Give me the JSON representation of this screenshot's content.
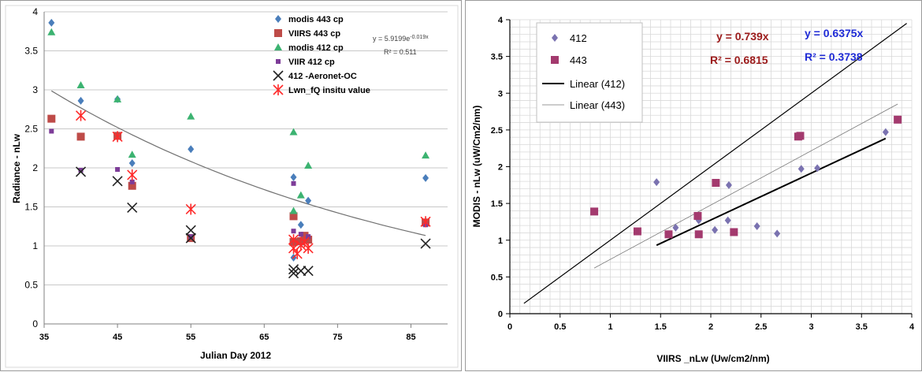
{
  "chart_data": [
    {
      "type": "scatter",
      "xlabel": "Julian Day 2012",
      "ylabel": "Radiance - nLw",
      "xlim": [
        35,
        90
      ],
      "ylim": [
        0,
        4
      ],
      "xticks": [
        35,
        45,
        55,
        65,
        75,
        85
      ],
      "yticks": [
        0,
        0.5,
        1,
        1.5,
        2,
        2.5,
        3,
        3.5,
        4
      ],
      "ytick_labels": [
        "0",
        "0.5",
        "1",
        "1.5",
        "2",
        "2.5",
        "3",
        "3.5",
        "4"
      ],
      "grid": "horizontal",
      "legend_position": "top-right",
      "series": [
        {
          "name": "modis 443 cp",
          "color": "#4a7ebb",
          "marker": "diamond",
          "x": [
            36,
            40,
            45,
            47,
            55,
            69,
            69,
            70,
            71,
            87
          ],
          "y": [
            3.86,
            2.86,
            2.88,
            2.06,
            2.24,
            1.88,
            0.85,
            1.27,
            1.58,
            1.87
          ]
        },
        {
          "name": "VIIRS 443 cp",
          "color": "#be4b48",
          "marker": "square",
          "x": [
            36,
            40,
            45,
            47,
            55,
            69,
            69,
            70,
            70.5,
            71,
            87
          ],
          "y": [
            2.63,
            2.4,
            2.41,
            1.77,
            1.1,
            1.38,
            1.05,
            1.06,
            1.13,
            1.08,
            1.3
          ]
        },
        {
          "name": "modis 412 cp",
          "color": "#3cb371",
          "marker": "triangle",
          "x": [
            36,
            40,
            45,
            47,
            55,
            69,
            69,
            70,
            71,
            87
          ],
          "y": [
            3.74,
            3.06,
            2.88,
            2.17,
            2.66,
            2.46,
            1.45,
            1.65,
            2.03,
            2.16
          ]
        },
        {
          "name": "VIIR 412 cp",
          "color": "#7d3c98",
          "marker": "square-small",
          "x": [
            36,
            40,
            45,
            47,
            55,
            69,
            69,
            70,
            71,
            87
          ],
          "y": [
            2.47,
            1.97,
            1.98,
            1.82,
            1.12,
            1.8,
            1.19,
            1.15,
            1.12,
            1.27
          ]
        },
        {
          "name": "412 -Aeronet-OC",
          "color": "#222222",
          "marker": "x",
          "x": [
            40,
            45,
            47,
            55,
            55,
            69,
            69,
            70,
            71,
            87
          ],
          "y": [
            1.95,
            1.83,
            1.49,
            1.2,
            1.1,
            0.7,
            0.65,
            0.68,
            0.68,
            1.03
          ]
        },
        {
          "name": "Lwn_fQ insitu value",
          "color": "#ff2a2a",
          "marker": "star",
          "x": [
            40,
            45,
            47,
            55,
            69,
            69,
            69.5,
            70,
            70.5,
            71,
            87
          ],
          "y": [
            2.67,
            2.4,
            1.91,
            1.47,
            1.08,
            0.97,
            0.9,
            1.01,
            1.05,
            0.97,
            1.31
          ]
        }
      ],
      "trendline": {
        "type": "exponential",
        "a": 5.9199,
        "b": -0.019,
        "x_range": [
          36,
          87
        ],
        "color": "#707070"
      },
      "annotations": {
        "equation_prefix": "y = 5.9199e",
        "equation_exponent": "-0.019x",
        "r2": "R² = 0.511"
      }
    },
    {
      "type": "scatter",
      "xlabel": "VIIRS  _nLw (Uw/cm2/nm)",
      "ylabel": "MODIS - nLw  (uW/Cm2/nm)",
      "xlim": [
        0,
        4
      ],
      "ylim": [
        0,
        4
      ],
      "xticks": [
        0,
        0.5,
        1,
        1.5,
        2,
        2.5,
        3,
        3.5,
        4
      ],
      "xtick_labels": [
        "0",
        "0.5",
        "1",
        "1.5",
        "2",
        "2.5",
        "3",
        "3.5",
        "4"
      ],
      "yticks": [
        0,
        0.5,
        1,
        1.5,
        2,
        2.5,
        3,
        3.5,
        4
      ],
      "ytick_labels": [
        "0",
        "0.5",
        "1",
        "1.5",
        "2",
        "2.5",
        "3",
        "3.5",
        "4"
      ],
      "grid": "both",
      "legend_position": "top-left",
      "series": [
        {
          "name": "412",
          "color": "#7a72b0",
          "marker": "diamond",
          "x": [
            1.46,
            1.65,
            1.88,
            2.04,
            2.17,
            2.18,
            2.46,
            2.66,
            2.9,
            3.06,
            3.74
          ],
          "y": [
            1.79,
            1.17,
            1.27,
            1.14,
            1.27,
            1.75,
            1.19,
            1.09,
            1.97,
            1.98,
            2.47
          ]
        },
        {
          "name": "443",
          "color": "#a33a6e",
          "marker": "square",
          "x": [
            0.84,
            1.27,
            1.58,
            1.87,
            1.88,
            2.05,
            2.23,
            2.87,
            2.89,
            3.86
          ],
          "y": [
            1.39,
            1.12,
            1.08,
            1.33,
            1.08,
            1.78,
            1.11,
            2.41,
            2.42,
            2.64
          ]
        }
      ],
      "trendlines": [
        {
          "name": "Linear (412)",
          "slope": 0.6375,
          "x_range": [
            1.46,
            3.74
          ],
          "color": "#000000",
          "width": 2
        },
        {
          "name": "Linear (443)",
          "slope": 0.739,
          "x_range": [
            0.84,
            3.86
          ],
          "color": "#777777",
          "width": 0.8
        }
      ],
      "reference_line": {
        "slope": 1,
        "x_range": [
          0.14,
          3.95
        ],
        "color": "#000000"
      },
      "annotations": {
        "eq_red": "y = 0.739x",
        "r2_red": "R² = 0.6815",
        "eq_blue": "y = 0.6375x",
        "r2_blue": "R² = 0.3738",
        "red_color": "#9b1b1b",
        "blue_color": "#1f2bd6"
      }
    }
  ]
}
